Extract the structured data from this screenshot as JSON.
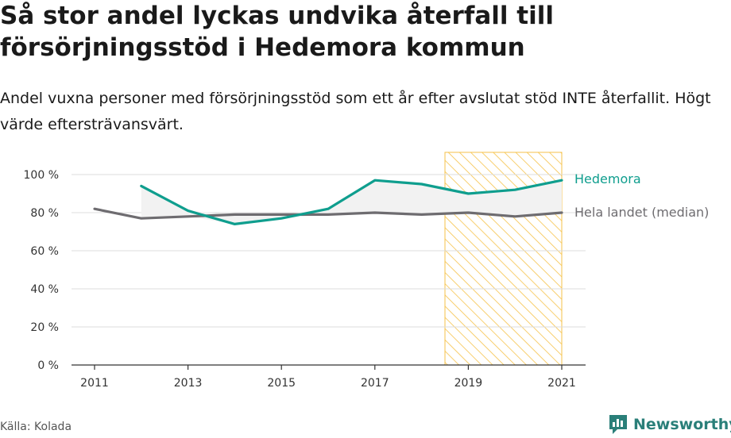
{
  "header": {
    "title": "Så stor andel lyckas undvika återfall till försörjningsstöd i Hedemora kommun",
    "subtitle": "Andel vuxna personer med försörjningsstöd som ett år efter avslutat stöd INTE återfallit. Högt värde eftersträvansvärt."
  },
  "footer": {
    "source": "Källa: Kolada",
    "brand": "Newsworthy"
  },
  "colors": {
    "hedemora": "#0f9e8e",
    "national": "#6e6c70",
    "highlight": "#f6c24a"
  },
  "chart_data": {
    "type": "line",
    "x": [
      2011,
      2012,
      2013,
      2014,
      2015,
      2016,
      2017,
      2018,
      2019,
      2020,
      2021
    ],
    "x_ticks": [
      "2011",
      "2013",
      "2015",
      "2017",
      "2019",
      "2021"
    ],
    "y_ticks": [
      "0 %",
      "20 %",
      "40 %",
      "60 %",
      "80 %",
      "100 %"
    ],
    "ylim": [
      0,
      100
    ],
    "grid": true,
    "highlight_range": [
      2018.5,
      2021
    ],
    "series": [
      {
        "name": "Hedemora",
        "values": [
          null,
          94,
          81,
          74,
          77,
          82,
          97,
          95,
          90,
          92,
          97
        ]
      },
      {
        "name": "Hela landet (median)",
        "values": [
          82,
          77,
          78,
          79,
          79,
          79,
          80,
          79,
          80,
          78,
          80
        ]
      }
    ]
  }
}
